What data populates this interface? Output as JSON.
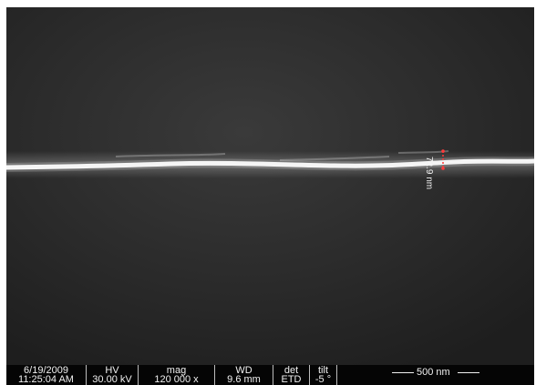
{
  "image": {
    "measurement_label": "72.9 nm",
    "background_color": "#2b2b2b",
    "fiber_color": "#f5f5f5",
    "marker_color": "#ff3b3b"
  },
  "databar": {
    "date": "6/19/2009",
    "time": "11:25:04 AM",
    "hv_label": "HV",
    "hv_value": "30.00 kV",
    "mag_label": "mag",
    "mag_value": "120 000 x",
    "wd_label": "WD",
    "wd_value": "9.6 mm",
    "det_label": "det",
    "det_value": "ETD",
    "tilt_label": "tilt",
    "tilt_value": "-5 °",
    "scale_label": "500 nm"
  }
}
